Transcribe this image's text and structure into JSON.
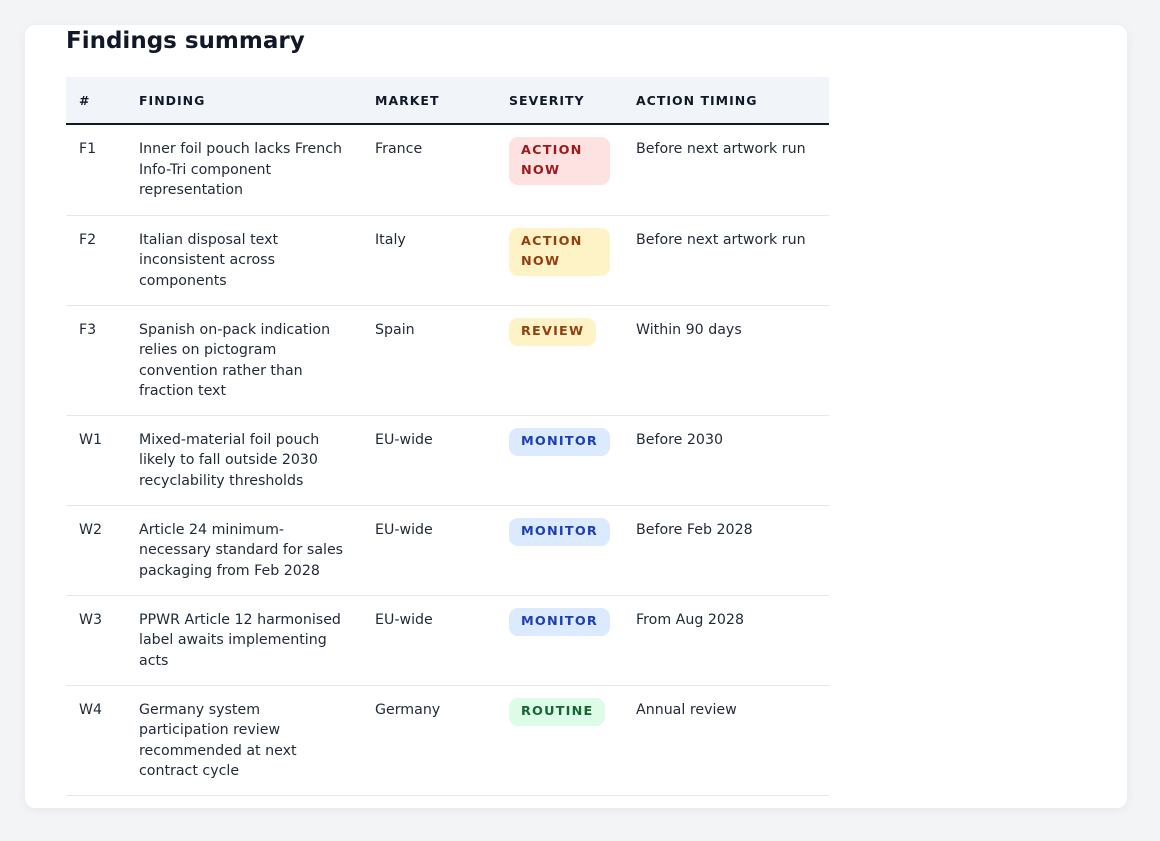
{
  "title": "Findings summary",
  "columns": [
    "#",
    "FINDING",
    "MARKET",
    "SEVERITY",
    "ACTION TIMING"
  ],
  "rows": [
    {
      "id": "F1",
      "finding": "Inner foil pouch lacks French Info-Tri component representation",
      "market": "France",
      "severity": "ACTION NOW",
      "timing": "Before next artwork run"
    },
    {
      "id": "F2",
      "finding": "Italian disposal text inconsistent across components",
      "market": "Italy",
      "severity": "ACTION NOW",
      "timing": "Before next artwork run"
    },
    {
      "id": "F3",
      "finding": "Spanish on-pack indication relies on pictogram convention rather than fraction text",
      "market": "Spain",
      "severity": "REVIEW",
      "timing": "Within 90 days"
    },
    {
      "id": "W1",
      "finding": "Mixed-material foil pouch likely to fall outside 2030 recyclability thresholds",
      "market": "EU-wide",
      "severity": "MONITOR",
      "timing": "Before 2030"
    },
    {
      "id": "W2",
      "finding": "Article 24 minimum-necessary standard for sales packaging from Feb 2028",
      "market": "EU-wide",
      "severity": "MONITOR",
      "timing": "Before Feb 2028"
    },
    {
      "id": "W3",
      "finding": "PPWR Article 12 harmonised label awaits implementing acts",
      "market": "EU-wide",
      "severity": "MONITOR",
      "timing": "From Aug 2028"
    },
    {
      "id": "W4",
      "finding": "Germany system participation review recommended at next contract cycle",
      "market": "Germany",
      "severity": "ROUTINE",
      "timing": "Annual review"
    }
  ],
  "severity_colors": {
    "action_now_red": "#991b1b",
    "action_now_amber": "#92400e",
    "review": "#92400e",
    "monitor": "#1e40af",
    "routine": "#166534"
  }
}
